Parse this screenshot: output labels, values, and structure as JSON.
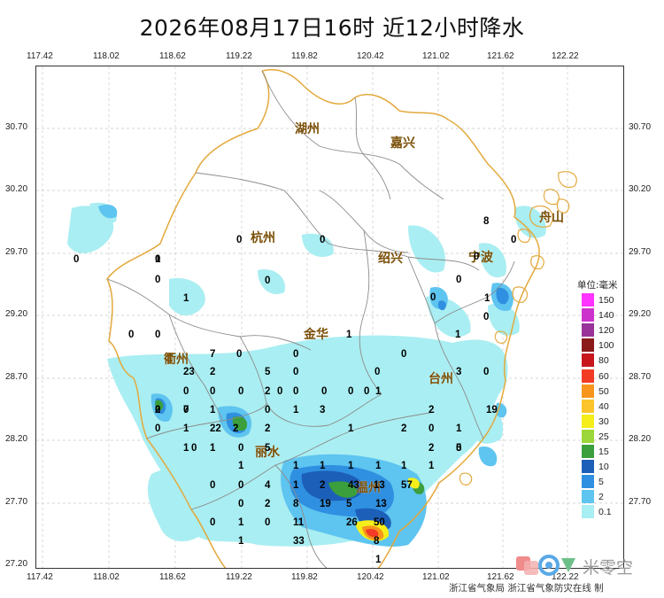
{
  "title": "2026年08月17日16时  近12小时降水",
  "x_ticks": [
    "117.42",
    "118.02",
    "118.62",
    "119.22",
    "119.82",
    "120.42",
    "121.02",
    "121.62",
    "122.22"
  ],
  "y_ticks": [
    "30.70",
    "30.20",
    "29.70",
    "29.20",
    "28.70",
    "28.20",
    "27.70",
    "27.20"
  ],
  "cities": [
    "湖州",
    "嘉兴",
    "杭州",
    "绍兴",
    "宁波",
    "金华",
    "衢州",
    "台州",
    "丽水",
    "温州",
    "舟山"
  ],
  "station_values": [
    "8",
    "0",
    "0",
    "0",
    "0",
    "0",
    "1",
    "0",
    "0",
    "1",
    "0",
    "1",
    "0",
    "0",
    "0",
    "1",
    "0",
    "0",
    "1",
    "0",
    "0",
    "23",
    "2",
    "7",
    "0",
    "5",
    "0",
    "0",
    "0",
    "3",
    "0",
    "0",
    "0",
    "0",
    "0",
    "2",
    "0",
    "0",
    "0",
    "1",
    "0",
    "0",
    "2",
    "7",
    "1",
    "0",
    "1",
    "3",
    "2",
    "19",
    "0",
    "1",
    "22",
    "2",
    "2",
    "1",
    "2",
    "0",
    "1",
    "0",
    "1",
    "5",
    "0",
    "2",
    "0",
    "1",
    "1",
    "1",
    "1",
    "1",
    "1",
    "1",
    "1",
    "5",
    "0",
    "0",
    "4",
    "1",
    "2",
    "43",
    "13",
    "57",
    "0",
    "2",
    "8",
    "19",
    "5",
    "13",
    "0",
    "1",
    "0",
    "11",
    "26",
    "50",
    "1",
    "33",
    "8",
    "1"
  ],
  "legend": {
    "unit": "单位:毫米",
    "levels": [
      {
        "label": "150",
        "color": "#ff33ff"
      },
      {
        "label": "140",
        "color": "#cc33cc"
      },
      {
        "label": "120",
        "color": "#993399"
      },
      {
        "label": "100",
        "color": "#8b1a1a"
      },
      {
        "label": "80",
        "color": "#c8161d"
      },
      {
        "label": "60",
        "color": "#f23b25"
      },
      {
        "label": "50",
        "color": "#f7951d"
      },
      {
        "label": "40",
        "color": "#fbc42b"
      },
      {
        "label": "30",
        "color": "#f5ee1a"
      },
      {
        "label": "25",
        "color": "#9bd63a"
      },
      {
        "label": "15",
        "color": "#3a9f3c"
      },
      {
        "label": "10",
        "color": "#1c5fb8"
      },
      {
        "label": "5",
        "color": "#2f8fe0"
      },
      {
        "label": "2",
        "color": "#5ec4f0"
      },
      {
        "label": "0.1",
        "color": "#a9eef2"
      }
    ]
  },
  "credit": "浙江省气象局  浙江省气象防灾在线  制",
  "brand": "米零空"
}
